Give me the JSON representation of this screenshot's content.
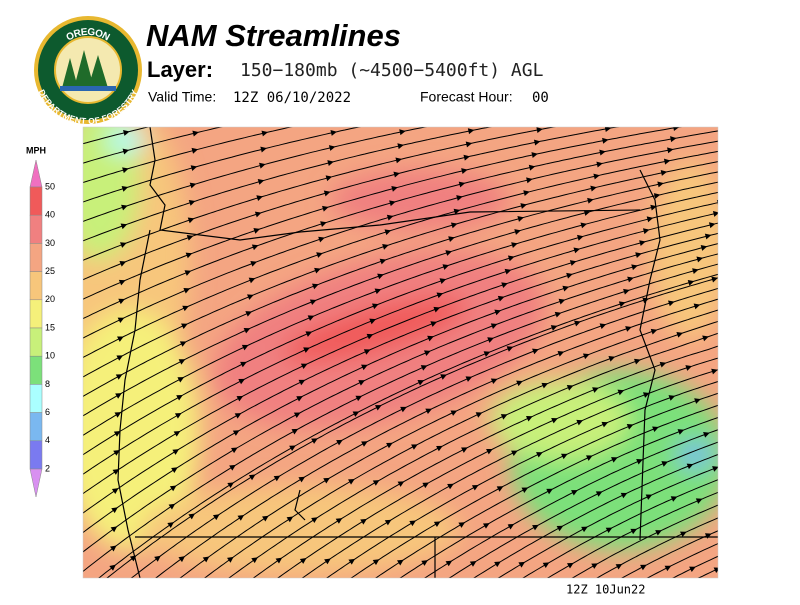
{
  "header": {
    "logo_top": "OREGON",
    "logo_bottom": "DEPARTMENT OF FORESTRY",
    "title": "NAM Streamlines",
    "layer_label": "Layer:",
    "layer_value": "150−180mb (~4500−5400ft) AGL",
    "valid_label": "Valid Time:",
    "valid_value": "12Z 06/10/2022",
    "forecast_label": "Forecast Hour:",
    "forecast_value": "00"
  },
  "colorbar": {
    "unit": "MPH",
    "ticks": [
      50,
      40,
      30,
      25,
      20,
      15,
      10,
      8,
      6,
      4,
      2
    ]
  },
  "footer": {
    "stamp": "12Z 10Jun22"
  }
}
